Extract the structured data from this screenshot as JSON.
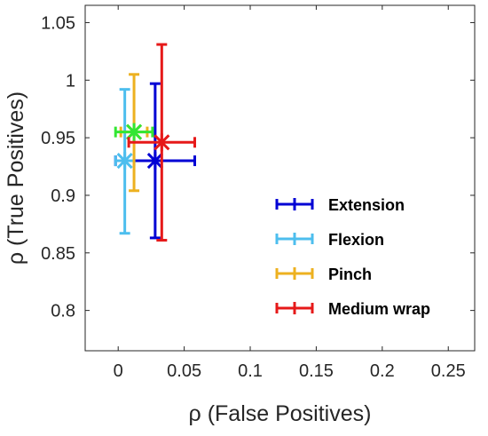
{
  "chart_data": {
    "type": "scatter",
    "xlabel": "ρ (False Positives)",
    "ylabel": "ρ (True Positives)",
    "xlim": [
      -0.025,
      0.27
    ],
    "ylim": [
      0.765,
      1.065
    ],
    "xticks": [
      0,
      0.05,
      0.1,
      0.15,
      0.2,
      0.25
    ],
    "yticks": [
      0.8,
      0.85,
      0.9,
      0.95,
      1,
      1.05
    ],
    "xtick_labels": [
      "0",
      "0.05",
      "0.1",
      "0.15",
      "0.2",
      "0.25"
    ],
    "ytick_labels": [
      "0.8",
      "0.85",
      "0.9",
      "0.95",
      "1",
      "1.05"
    ],
    "grid": false,
    "legend_position": "lower-right",
    "marker": "asterisk",
    "error_bars": "x and y",
    "series": [
      {
        "name": "Extension",
        "color": "#0000d4",
        "x": 0.028,
        "y": 0.93,
        "x_lo": -0.002,
        "x_hi": 0.058,
        "y_lo": 0.863,
        "y_hi": 0.997
      },
      {
        "name": "Flexion",
        "color": "#4dbeee",
        "x": 0.005,
        "y": 0.93,
        "x_lo": -0.002,
        "x_hi": 0.012,
        "y_lo": 0.867,
        "y_hi": 0.992
      },
      {
        "name": "Pinch",
        "color": "#edb120",
        "x": 0.012,
        "y": 0.955,
        "x_lo": 0.002,
        "x_hi": 0.022,
        "y_lo": 0.904,
        "y_hi": 1.005
      },
      {
        "name": "",
        "color": "#33e633",
        "x": 0.012,
        "y": 0.955,
        "x_lo": -0.002,
        "x_hi": 0.026,
        "y_lo": 0.955,
        "y_hi": 0.955
      },
      {
        "name": "Medium wrap",
        "color": "#e61919",
        "x": 0.033,
        "y": 0.946,
        "x_lo": 0.008,
        "x_hi": 0.058,
        "y_lo": 0.861,
        "y_hi": 1.031
      }
    ]
  }
}
